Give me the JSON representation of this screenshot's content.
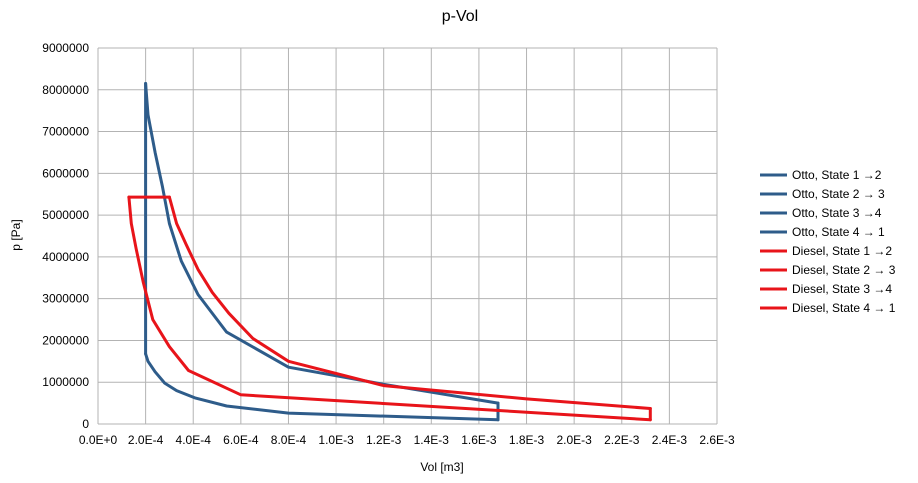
{
  "chart_data": {
    "type": "line",
    "title": "p-Vol",
    "xlabel": "Vol [m3]",
    "ylabel": "p [Pa]",
    "xlim": [
      0,
      0.0026
    ],
    "ylim": [
      0,
      9000000
    ],
    "grid": true,
    "legend_position": "right",
    "x_tick_labels": [
      "0.0E+0",
      "2.0E-4",
      "4.0E-4",
      "6.0E-4",
      "8.0E-4",
      "1.0E-3",
      "1.2E-3",
      "1.4E-3",
      "1.6E-3",
      "1.8E-3",
      "2.0E-3",
      "2.2E-3",
      "2.4E-3",
      "2.6E-3"
    ],
    "y_tick_labels": [
      "0",
      "1000000",
      "2000000",
      "3000000",
      "4000000",
      "5000000",
      "6000000",
      "7000000",
      "8000000",
      "9000000"
    ],
    "series": [
      {
        "name": "Otto, State 1 →2",
        "color": "#2e5c8a",
        "x": [
          0.00168,
          0.0008,
          0.00054,
          0.00041,
          0.00033,
          0.00028,
          0.00024,
          0.00021,
          0.0002
        ],
        "y": [
          100000,
          260000,
          430000,
          620000,
          800000,
          980000,
          1250000,
          1500000,
          1680000
        ]
      },
      {
        "name": "Otto, State 2 → 3",
        "color": "#2e5c8a",
        "x": [
          0.0002,
          0.0002
        ],
        "y": [
          1680000,
          8150000
        ]
      },
      {
        "name": "Otto, State 3 →4",
        "color": "#2e5c8a",
        "x": [
          0.0002,
          0.00021,
          0.00024,
          0.00027,
          0.0003,
          0.00035,
          0.00042,
          0.00054,
          0.0008,
          0.0012,
          0.00168
        ],
        "y": [
          8150000,
          7400000,
          6500000,
          5700000,
          4800000,
          3900000,
          3100000,
          2200000,
          1360000,
          950000,
          500000
        ]
      },
      {
        "name": "Otto, State 4 → 1",
        "color": "#2e5c8a",
        "x": [
          0.00168,
          0.00168
        ],
        "y": [
          500000,
          100000
        ]
      },
      {
        "name": "Diesel, State 1 →2",
        "color": "#e8141a",
        "x": [
          0.00232,
          0.0006,
          0.00038,
          0.0003,
          0.00023,
          0.00019,
          0.00016,
          0.00014,
          0.00013
        ],
        "y": [
          100000,
          700000,
          1280000,
          1850000,
          2500000,
          3400000,
          4200000,
          4800000,
          5430000
        ]
      },
      {
        "name": "Diesel, State 2 → 3",
        "color": "#e8141a",
        "x": [
          0.00013,
          0.0003
        ],
        "y": [
          5430000,
          5430000
        ]
      },
      {
        "name": "Diesel, State 3 →4",
        "color": "#e8141a",
        "x": [
          0.0003,
          0.00033,
          0.00037,
          0.00042,
          0.00048,
          0.00055,
          0.00065,
          0.0008,
          0.0012,
          0.0018,
          0.00232
        ],
        "y": [
          5430000,
          4800000,
          4300000,
          3700000,
          3150000,
          2650000,
          2050000,
          1500000,
          920000,
          600000,
          370000
        ]
      },
      {
        "name": "Diesel, State 4 → 1",
        "color": "#e8141a",
        "x": [
          0.00232,
          0.00232
        ],
        "y": [
          370000,
          100000
        ]
      }
    ]
  }
}
